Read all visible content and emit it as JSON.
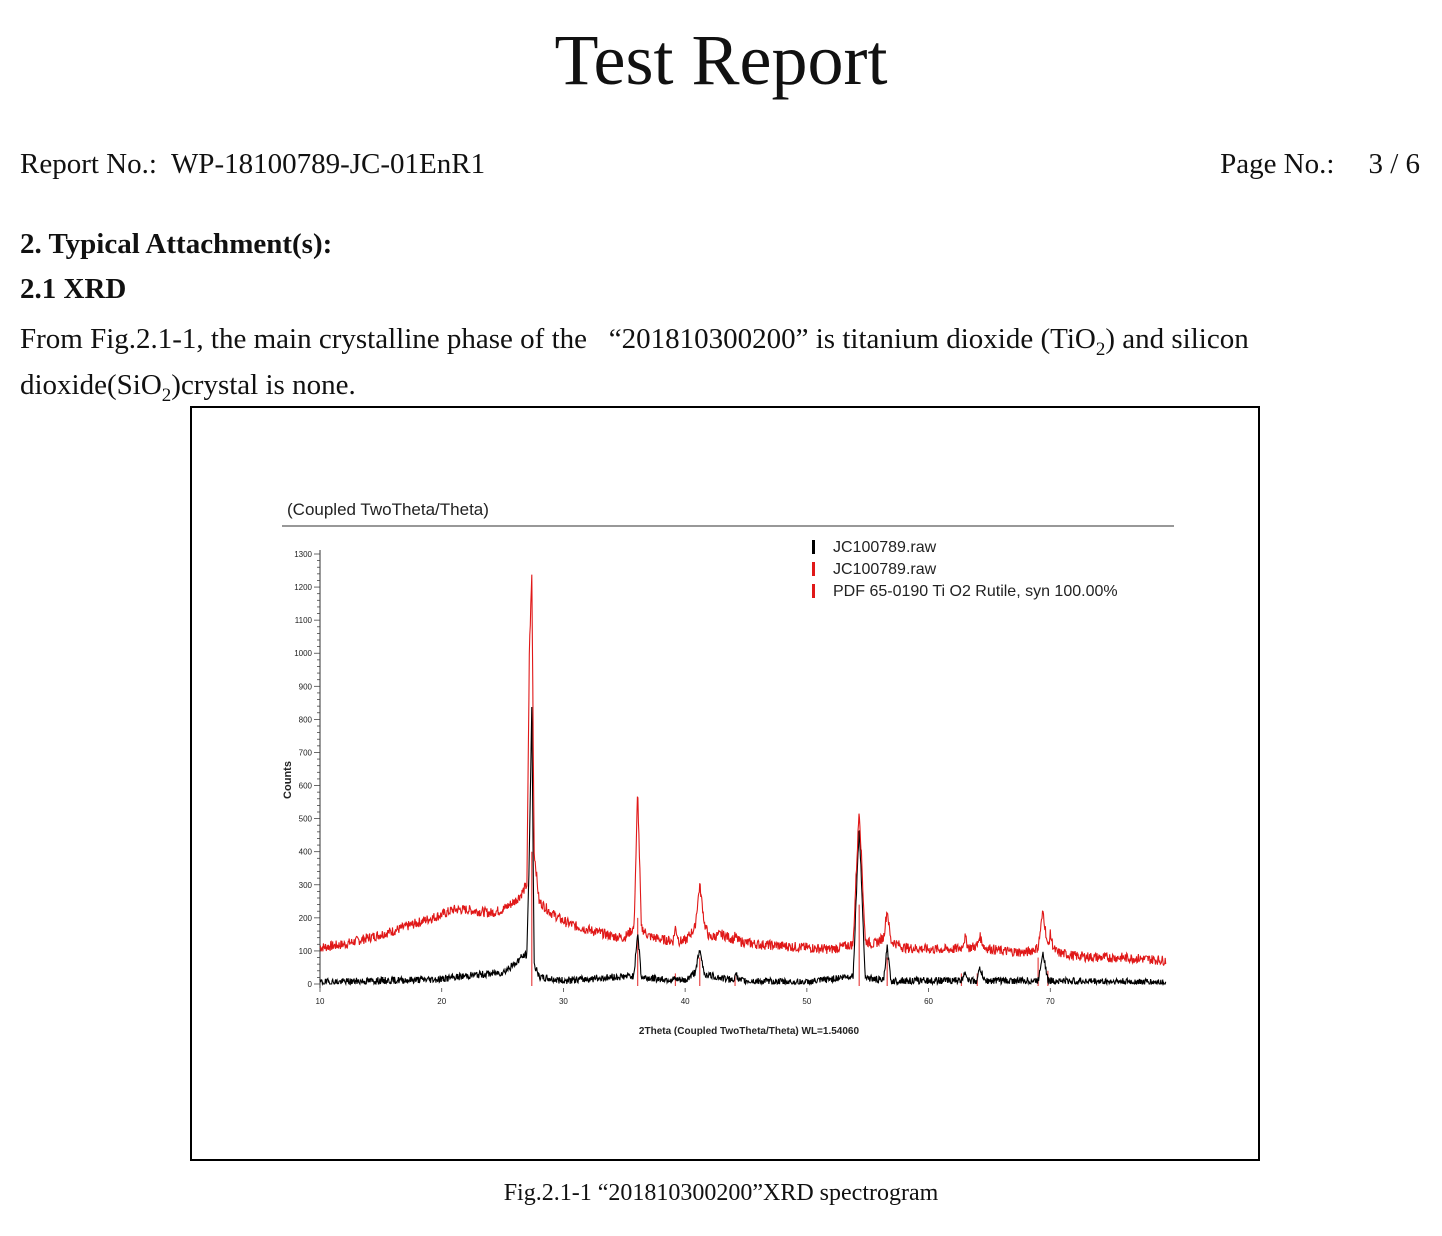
{
  "header": {
    "title": "Test Report",
    "report_no_label": "Report No.:",
    "report_no_value": "WP-18100789-JC-01EnR1",
    "page_no_label": "Page No.:",
    "page_no_value": "3 / 6"
  },
  "section": {
    "heading": "2. Typical Attachment(s):",
    "subheading": "2.1 XRD",
    "para_part1": "From Fig.2.1-1, the main crystalline phase of the   “201810300200” is titanium dioxide (TiO",
    "para_sub1": "2",
    "para_part2": ") and silicon dioxide(SiO",
    "para_sub2": "2",
    "para_part3": ")crystal is none."
  },
  "figure": {
    "caption": "Fig.2.1-1 “201810300200”XRD spectrogram"
  },
  "chart_data": {
    "type": "line",
    "title": "(Coupled TwoTheta/Theta)",
    "xlabel": "2Theta (Coupled TwoTheta/Theta) WL=1.54060",
    "ylabel": "Counts",
    "xlim": [
      10,
      80
    ],
    "ylim": [
      0,
      1300
    ],
    "x_ticks": [
      10,
      20,
      30,
      40,
      50,
      60,
      70
    ],
    "y_ticks": [
      0,
      100,
      200,
      300,
      400,
      500,
      600,
      700,
      800,
      900,
      1000,
      1100,
      1200,
      1300
    ],
    "legend": {
      "placement": "top-right",
      "entries": [
        {
          "label": "JC100789.raw",
          "color": "#000000"
        },
        {
          "label": "JC100789.raw",
          "color": "#e01818"
        },
        {
          "label": "PDF 65-0190 Ti O2 Rutile, syn  100.00%",
          "color": "#e01818"
        }
      ]
    },
    "series": [
      {
        "color": "#e01818",
        "x": [
          10,
          12,
          14,
          16,
          18,
          20,
          21,
          22,
          23,
          24,
          25,
          26,
          26.5,
          27,
          27.2,
          27.4,
          27.6,
          28,
          29,
          30,
          31,
          32,
          33,
          34,
          35,
          35.8,
          36.1,
          36.4,
          37,
          38,
          39,
          39.2,
          39.5,
          40,
          40.8,
          41.2,
          41.6,
          42,
          43,
          44,
          44.1,
          44.4,
          45,
          46,
          48,
          50,
          52,
          53.8,
          54.3,
          54.8,
          55.5,
          56.3,
          56.6,
          56.9,
          58,
          60,
          62,
          62.7,
          63,
          63.3,
          64,
          64.2,
          64.6,
          66,
          68,
          69,
          69.4,
          69.8,
          70,
          70.3,
          70.6,
          72,
          74,
          76,
          78,
          80
        ],
        "y": [
          110,
          120,
          140,
          160,
          185,
          210,
          225,
          225,
          220,
          215,
          225,
          250,
          270,
          300,
          1000,
          1235,
          400,
          250,
          215,
          190,
          175,
          165,
          155,
          145,
          140,
          170,
          585,
          170,
          145,
          135,
          130,
          170,
          130,
          130,
          170,
          300,
          180,
          140,
          150,
          135,
          145,
          130,
          125,
          120,
          115,
          110,
          105,
          120,
          535,
          130,
          120,
          140,
          225,
          130,
          110,
          105,
          105,
          110,
          140,
          110,
          115,
          145,
          110,
          100,
          95,
          110,
          220,
          110,
          150,
          105,
          95,
          85,
          80,
          80,
          75,
          70
        ]
      },
      {
        "color": "#000000",
        "x": [
          10,
          20,
          22,
          25,
          26,
          26.5,
          27,
          27.2,
          27.4,
          27.6,
          28,
          30,
          35.8,
          36.1,
          36.4,
          40,
          40.8,
          41.2,
          41.6,
          44,
          44.1,
          44.4,
          50,
          53.8,
          54.3,
          54.8,
          56.3,
          56.6,
          56.9,
          62.7,
          63,
          63.3,
          64,
          64.2,
          64.6,
          69,
          69.4,
          69.8,
          80
        ],
        "y": [
          5,
          15,
          25,
          35,
          60,
          80,
          90,
          400,
          830,
          60,
          20,
          10,
          25,
          160,
          20,
          10,
          35,
          100,
          30,
          10,
          40,
          10,
          5,
          25,
          480,
          20,
          10,
          110,
          10,
          10,
          40,
          10,
          10,
          50,
          10,
          10,
          100,
          10,
          5
        ]
      }
    ],
    "reference_peaks": {
      "color": "#e01818",
      "x": [
        27.4,
        36.1,
        39.2,
        41.2,
        44.1,
        54.3,
        56.6,
        62.7,
        64.0,
        69.0,
        69.8
      ],
      "rel_intensity": [
        1.0,
        0.5,
        0.08,
        0.2,
        0.07,
        0.6,
        0.2,
        0.08,
        0.08,
        0.2,
        0.1
      ]
    }
  }
}
